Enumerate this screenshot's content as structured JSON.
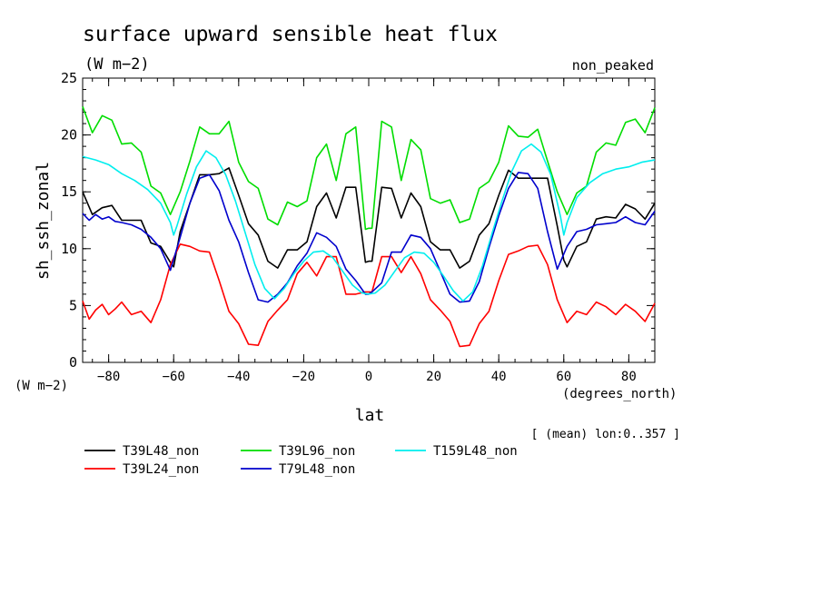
{
  "chart_data": {
    "type": "line",
    "title": "surface upward sensible heat flux",
    "units": "(W m−2)",
    "corner_label": "non_peaked",
    "ylabel": "sh_ssh_zonal",
    "yunits": "(W m−2)",
    "xlabel": "lat",
    "xunits": "(degrees_north)",
    "note": "[ (mean) lon:0..357 ]",
    "xlim": [
      -88,
      88
    ],
    "ylim": [
      0,
      25
    ],
    "xticks": [
      -80,
      -60,
      -40,
      -20,
      0,
      20,
      40,
      60,
      80
    ],
    "xtick_labels": [
      "−80",
      "−60",
      "−40",
      "−20",
      "0",
      "20",
      "40",
      "60",
      "80"
    ],
    "yticks": [
      0,
      5,
      10,
      15,
      20,
      25
    ],
    "ytick_labels": [
      "0",
      "5",
      "10",
      "15",
      "20",
      "25"
    ],
    "grid": false,
    "legend_position": "bottom",
    "series": [
      {
        "name": "T39L48_non",
        "color": "#000000",
        "x": [
          -88,
          -85,
          -82,
          -79,
          -76,
          -73,
          -70,
          -67,
          -64,
          -61,
          -60,
          -58,
          -55,
          -52,
          -49,
          -46,
          -43,
          -40,
          -37,
          -34,
          -31,
          -28,
          -25,
          -22,
          -19,
          -16,
          -13,
          -10,
          -7,
          -4,
          -1,
          0,
          1,
          4,
          7,
          10,
          13,
          16,
          19,
          22,
          25,
          28,
          31,
          34,
          37,
          40,
          43,
          46,
          49,
          52,
          55,
          58,
          60,
          61,
          64,
          67,
          70,
          73,
          76,
          79,
          82,
          85,
          88
        ],
        "y": [
          15.0,
          13.0,
          13.6,
          13.8,
          12.5,
          12.5,
          12.5,
          10.5,
          10.2,
          8.8,
          8.4,
          11.5,
          14.0,
          16.5,
          16.5,
          16.6,
          17.1,
          14.7,
          12.2,
          11.2,
          8.9,
          8.3,
          9.9,
          9.9,
          10.6,
          13.7,
          14.9,
          12.7,
          15.4,
          15.4,
          8.8,
          8.9,
          8.9,
          15.4,
          15.3,
          12.7,
          14.9,
          13.7,
          10.6,
          9.9,
          9.9,
          8.3,
          8.9,
          11.2,
          12.2,
          14.7,
          16.9,
          16.2,
          16.2,
          16.2,
          16.2,
          12.0,
          9.0,
          8.4,
          10.2,
          10.6,
          12.6,
          12.8,
          12.7,
          13.9,
          13.5,
          12.6,
          14.0
        ]
      },
      {
        "name": "T39L24_non",
        "color": "#ff0000",
        "x": [
          -88,
          -86,
          -84,
          -82,
          -80,
          -78,
          -76,
          -73,
          -70,
          -67,
          -64,
          -61,
          -58,
          -55,
          -52,
          -49,
          -46,
          -43,
          -40,
          -37,
          -34,
          -31,
          -28,
          -25,
          -22,
          -19,
          -16,
          -13,
          -10,
          -7,
          -4,
          -1,
          0,
          1,
          4,
          7,
          10,
          13,
          16,
          19,
          22,
          25,
          28,
          31,
          34,
          37,
          40,
          43,
          46,
          49,
          52,
          55,
          58,
          61,
          64,
          67,
          70,
          73,
          76,
          79,
          82,
          85,
          88
        ],
        "y": [
          5.4,
          3.8,
          4.6,
          5.1,
          4.2,
          4.7,
          5.3,
          4.2,
          4.5,
          3.5,
          5.5,
          8.6,
          10.4,
          10.2,
          9.8,
          9.7,
          7.2,
          4.5,
          3.4,
          1.6,
          1.5,
          3.6,
          4.6,
          5.5,
          7.8,
          8.8,
          7.6,
          9.3,
          9.3,
          6.0,
          6.0,
          6.2,
          6.2,
          6.2,
          9.3,
          9.3,
          7.9,
          9.3,
          7.8,
          5.5,
          4.6,
          3.6,
          1.4,
          1.5,
          3.4,
          4.5,
          7.2,
          9.5,
          9.8,
          10.2,
          10.3,
          8.6,
          5.5,
          3.5,
          4.5,
          4.2,
          5.3,
          4.9,
          4.2,
          5.1,
          4.5,
          3.6,
          5.2
        ]
      },
      {
        "name": "T39L96_non",
        "color": "#00dd00",
        "x": [
          -88,
          -85,
          -82,
          -79,
          -76,
          -73,
          -70,
          -67,
          -64,
          -61,
          -58,
          -55,
          -52,
          -49,
          -46,
          -43,
          -40,
          -37,
          -34,
          -31,
          -28,
          -25,
          -22,
          -19,
          -16,
          -13,
          -10,
          -7,
          -4,
          -1,
          0,
          1,
          4,
          7,
          10,
          13,
          16,
          19,
          22,
          25,
          28,
          31,
          34,
          37,
          40,
          43,
          46,
          49,
          52,
          55,
          58,
          61,
          64,
          67,
          70,
          73,
          76,
          79,
          82,
          85,
          88
        ],
        "y": [
          22.5,
          20.2,
          21.7,
          21.3,
          19.2,
          19.3,
          18.5,
          15.5,
          14.9,
          13.0,
          15.0,
          17.7,
          20.7,
          20.1,
          20.1,
          21.2,
          17.6,
          15.9,
          15.3,
          12.6,
          12.1,
          14.1,
          13.7,
          14.2,
          18.0,
          19.2,
          16.0,
          20.1,
          20.7,
          11.7,
          11.8,
          11.8,
          21.2,
          20.7,
          16.0,
          19.6,
          18.7,
          14.4,
          14.0,
          14.3,
          12.3,
          12.6,
          15.3,
          15.9,
          17.6,
          20.8,
          19.9,
          19.8,
          20.5,
          17.7,
          15.0,
          13.0,
          14.9,
          15.5,
          18.5,
          19.3,
          19.1,
          21.1,
          21.4,
          20.2,
          22.4
        ]
      },
      {
        "name": "T79L48_non",
        "color": "#0000cc",
        "x": [
          -88,
          -86,
          -84,
          -82,
          -80,
          -78,
          -76,
          -73,
          -70,
          -67,
          -64,
          -61,
          -58,
          -55,
          -52,
          -49,
          -46,
          -43,
          -40,
          -37,
          -34,
          -31,
          -28,
          -25,
          -22,
          -19,
          -16,
          -13,
          -10,
          -7,
          -4,
          -1,
          0,
          1,
          4,
          7,
          10,
          13,
          16,
          19,
          22,
          25,
          28,
          31,
          34,
          37,
          40,
          43,
          46,
          49,
          52,
          55,
          58,
          61,
          64,
          67,
          70,
          73,
          76,
          79,
          82,
          85,
          88
        ],
        "y": [
          13.1,
          12.5,
          13.0,
          12.6,
          12.8,
          12.4,
          12.3,
          12.1,
          11.7,
          11.0,
          10.0,
          8.1,
          11.0,
          14.0,
          16.2,
          16.5,
          15.1,
          12.5,
          10.6,
          7.9,
          5.5,
          5.3,
          6.0,
          7.0,
          8.5,
          9.6,
          11.4,
          11.0,
          10.2,
          8.2,
          7.2,
          6.0,
          6.0,
          6.2,
          7.0,
          9.7,
          9.7,
          11.2,
          11.0,
          10.0,
          8.0,
          6.0,
          5.3,
          5.4,
          7.1,
          10.1,
          12.9,
          15.3,
          16.7,
          16.6,
          15.3,
          11.5,
          8.2,
          10.2,
          11.5,
          11.7,
          12.1,
          12.2,
          12.3,
          12.8,
          12.3,
          12.1,
          13.3
        ]
      },
      {
        "name": "T159L48_non",
        "color": "#00eeee",
        "x": [
          -88,
          -84,
          -80,
          -76,
          -72,
          -68,
          -64,
          -61,
          -60,
          -59,
          -56,
          -53,
          -50,
          -47,
          -44,
          -41,
          -38,
          -35,
          -32,
          -29,
          -26,
          -23,
          -20,
          -17,
          -14,
          -11,
          -8,
          -5,
          -2,
          0,
          2,
          5,
          8,
          11,
          14,
          17,
          20,
          23,
          26,
          29,
          32,
          35,
          38,
          41,
          44,
          47,
          50,
          53,
          56,
          59,
          60,
          61,
          64,
          68,
          72,
          76,
          80,
          84,
          88
        ],
        "y": [
          18.1,
          17.8,
          17.4,
          16.6,
          16.0,
          15.2,
          14.0,
          12.3,
          11.2,
          12.0,
          14.8,
          17.2,
          18.6,
          18.0,
          16.5,
          14.2,
          11.4,
          8.6,
          6.5,
          5.6,
          6.5,
          7.8,
          8.9,
          9.7,
          9.8,
          9.2,
          8.0,
          6.8,
          6.1,
          6.0,
          6.1,
          6.8,
          8.0,
          9.2,
          9.7,
          9.6,
          8.8,
          7.6,
          6.3,
          5.4,
          6.2,
          8.5,
          11.4,
          14.2,
          16.8,
          18.6,
          19.2,
          18.5,
          16.5,
          12.8,
          11.2,
          12.3,
          14.5,
          15.8,
          16.6,
          17.0,
          17.2,
          17.6,
          17.8
        ]
      }
    ]
  }
}
